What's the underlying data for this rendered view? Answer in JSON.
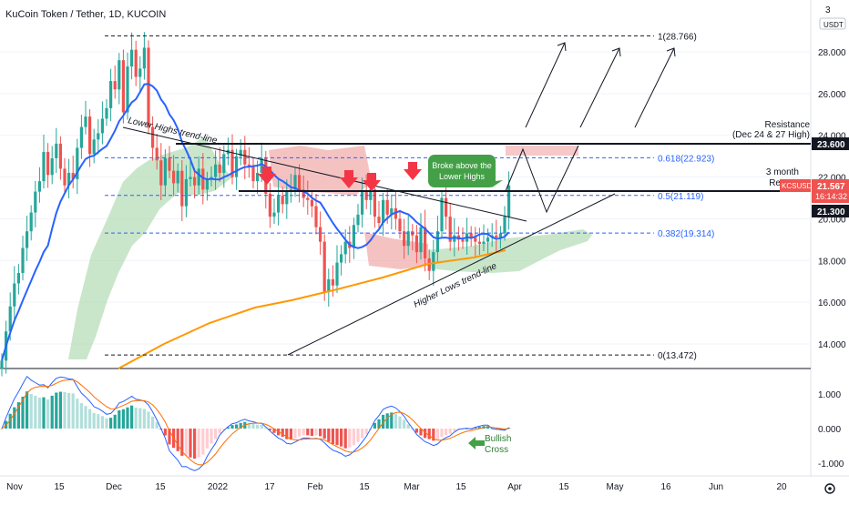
{
  "header": {
    "title": "KuCoin Token / Tether, 1D, KUCOIN",
    "currency": "USDT",
    "corner_label": "3"
  },
  "axes": {
    "price_ticks": [
      "28.000",
      "26.000",
      "24.000",
      "22.000",
      "20.000",
      "18.000",
      "16.000",
      "14.000"
    ],
    "macd_ticks": [
      "1.000",
      "0.000",
      "-1.000"
    ],
    "date_ticks": [
      "Nov",
      "15",
      "Dec",
      "15",
      "2022",
      "17",
      "Feb",
      "15",
      "Mar",
      "15",
      "Apr",
      "15",
      "May",
      "16",
      "Jun",
      "20"
    ]
  },
  "price_labels": {
    "symbol": "KCSUSDT",
    "last": "21.567",
    "countdown": "16:14:32",
    "resistance": "23.600",
    "support": "21.300"
  },
  "fib_levels": [
    {
      "label": "1(28.766)",
      "value": 28.766
    },
    {
      "label": "0.618(22.923)",
      "value": 22.923
    },
    {
      "label": "0.5(21.119)",
      "value": 21.119
    },
    {
      "label": "0.382(19.314)",
      "value": 19.314
    },
    {
      "label": "0(13.472)",
      "value": 13.472
    }
  ],
  "annotations": {
    "lower_highs": "Lower Highs trend-line",
    "higher_lows": "Higher Lows trend-line",
    "resistance_1": "Resistance",
    "resistance_2": "(Dec 24 & 27 High)",
    "three_month_1": "3 month",
    "three_month_2": "Re",
    "broke_1": "Broke above the",
    "broke_2": "Lower Highs",
    "bullish_1": "Bullish",
    "bullish_2": "Cross"
  },
  "colors": {
    "up": "#26a69a",
    "down": "#ef5350",
    "ma50": "#2962ff",
    "ma200": "#ff9800",
    "cloud_bull": "#a5d6a7",
    "cloud_bear": "#ef9a9a",
    "fib": "#2962ff"
  },
  "chart_data": {
    "type": "candlestick",
    "symbol": "KCSUSDT",
    "timeframe": "1D",
    "ylim": [
      13,
      29.5
    ],
    "closes": [
      13.2,
      14.6,
      15.8,
      16.9,
      17.4,
      18.6,
      19.4,
      20.3,
      21.3,
      21.8,
      23.2,
      22.1,
      22.9,
      23.6,
      22.4,
      21.6,
      22.2,
      21.9,
      23.4,
      24.4,
      24.9,
      23.1,
      23.8,
      24.1,
      24.8,
      25.3,
      26.6,
      26.2,
      27.6,
      25.1,
      27.3,
      28.1,
      26.8,
      27.2,
      28.2,
      24.4,
      23.4,
      22.8,
      21.6,
      22.9,
      22.3,
      21.7,
      22.3,
      20.6,
      21.9,
      22.0,
      21.6,
      22.4,
      21.4,
      21.9,
      22.0,
      22.6,
      22.2,
      23.1,
      23.3,
      22.0,
      23.0,
      23.3,
      22.6,
      22.5,
      21.8,
      22.2,
      22.9,
      21.2,
      20.1,
      20.3,
      21.1,
      20.7,
      21.3,
      21.4,
      22.1,
      21.4,
      21.0,
      20.9,
      20.6,
      19.6,
      18.9,
      16.5,
      17.1,
      16.8,
      17.9,
      18.3,
      18.9,
      18.6,
      19.7,
      20.2,
      21.3,
      20.9,
      21.4,
      20.1,
      19.8,
      20.9,
      20.2,
      20.5,
      20.0,
      19.4,
      18.7,
      19.4,
      19.2,
      18.4,
      19.6,
      18.1,
      17.5,
      18.4,
      19.4,
      21.0,
      20.1,
      18.9,
      19.2,
      19.0,
      18.9,
      19.3,
      19.1,
      18.9,
      18.8,
      18.9,
      19.1,
      19.2,
      19.1,
      19.3,
      20.1,
      21.6
    ],
    "fib_levels": [
      28.766,
      22.923,
      21.119,
      19.314,
      13.472
    ],
    "resistance": 23.6,
    "support": 21.3,
    "last_price": 21.567
  }
}
